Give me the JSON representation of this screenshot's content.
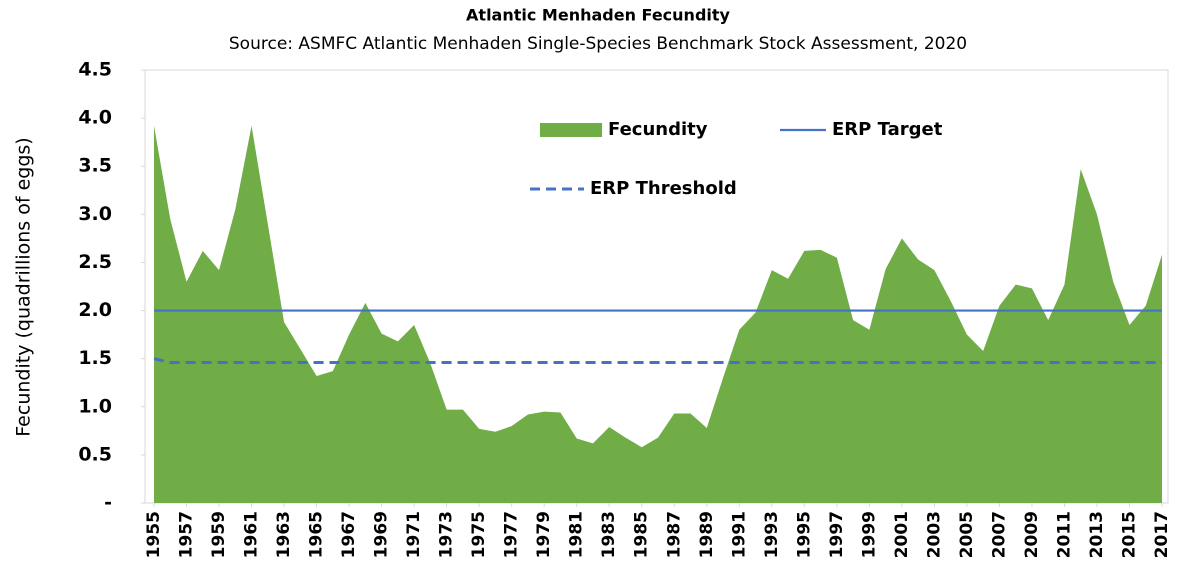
{
  "chart_data": {
    "type": "area",
    "title": "Atlantic Menhaden Fecundity",
    "subtitle": "Source: ASMFC Atlantic Menhaden Single-Species Benchmark Stock Assessment, 2020",
    "y_label": "Fecundity (quadrillions of eggs)",
    "x": [
      1955,
      1956,
      1957,
      1958,
      1959,
      1960,
      1961,
      1962,
      1963,
      1964,
      1965,
      1966,
      1967,
      1968,
      1969,
      1970,
      1971,
      1972,
      1973,
      1974,
      1975,
      1976,
      1977,
      1978,
      1979,
      1980,
      1981,
      1982,
      1983,
      1984,
      1985,
      1986,
      1987,
      1988,
      1989,
      1990,
      1991,
      1992,
      1993,
      1994,
      1995,
      1996,
      1997,
      1998,
      1999,
      2000,
      2001,
      2002,
      2003,
      2004,
      2005,
      2006,
      2007,
      2008,
      2009,
      2010,
      2011,
      2012,
      2013,
      2014,
      2015,
      2016,
      2017
    ],
    "xlim": [
      1955,
      2017
    ],
    "xticks": [
      1955,
      1957,
      1959,
      1961,
      1963,
      1965,
      1967,
      1969,
      1971,
      1973,
      1975,
      1977,
      1979,
      1981,
      1983,
      1985,
      1987,
      1989,
      1991,
      1993,
      1995,
      1997,
      1999,
      2001,
      2003,
      2005,
      2007,
      2009,
      2011,
      2013,
      2015,
      2017
    ],
    "ylim": [
      0,
      4.5
    ],
    "yticks": [
      {
        "value": 0,
        "label": "-"
      },
      0.5,
      {
        "value": 1,
        "label": "1.0"
      },
      1.5,
      {
        "value": 2,
        "label": "2.0"
      },
      2.5,
      {
        "value": 3,
        "label": "3.0"
      },
      3.5,
      {
        "value": 4,
        "label": "4.0"
      },
      4.5
    ],
    "series": [
      {
        "name": "Fecundity",
        "color": "#70ad47",
        "style": "area",
        "values": [
          3.92,
          2.95,
          2.3,
          2.62,
          2.42,
          3.05,
          3.92,
          2.9,
          1.88,
          1.6,
          1.32,
          1.37,
          1.75,
          2.08,
          1.76,
          1.68,
          1.85,
          1.45,
          0.97,
          0.97,
          0.77,
          0.74,
          0.8,
          0.92,
          0.95,
          0.94,
          0.67,
          0.62,
          0.79,
          0.68,
          0.58,
          0.68,
          0.93,
          0.93,
          0.78,
          1.3,
          1.8,
          1.98,
          2.42,
          2.33,
          2.62,
          2.63,
          2.55,
          1.9,
          1.8,
          2.43,
          2.75,
          2.53,
          2.42,
          2.1,
          1.75,
          1.58,
          2.05,
          2.27,
          2.23,
          1.9,
          2.27,
          3.47,
          3.0,
          2.3,
          1.85,
          2.05,
          2.58
        ]
      },
      {
        "name": "ERP Target",
        "color": "#4472c4",
        "style": "solid",
        "values": [
          2,
          2,
          2,
          2,
          2,
          2,
          2,
          2,
          2,
          2,
          2,
          2,
          2,
          2,
          2,
          2,
          2,
          2,
          2,
          2,
          2,
          2,
          2,
          2,
          2,
          2,
          2,
          2,
          2,
          2,
          2,
          2,
          2,
          2,
          2,
          2,
          2,
          2,
          2,
          2,
          2,
          2,
          2,
          2,
          2,
          2,
          2,
          2,
          2,
          2,
          2,
          2,
          2,
          2,
          2,
          2,
          2,
          2,
          2,
          2,
          2,
          2,
          2
        ]
      },
      {
        "name": "ERP Threshold",
        "color": "#4472c4",
        "style": "dashed",
        "values": [
          1.5,
          1.46,
          1.46,
          1.46,
          1.46,
          1.46,
          1.46,
          1.46,
          1.46,
          1.46,
          1.46,
          1.46,
          1.46,
          1.46,
          1.46,
          1.46,
          1.46,
          1.46,
          1.46,
          1.46,
          1.46,
          1.46,
          1.46,
          1.46,
          1.46,
          1.46,
          1.46,
          1.46,
          1.46,
          1.46,
          1.46,
          1.46,
          1.46,
          1.46,
          1.46,
          1.46,
          1.46,
          1.46,
          1.46,
          1.46,
          1.46,
          1.46,
          1.46,
          1.46,
          1.46,
          1.46,
          1.46,
          1.46,
          1.46,
          1.46,
          1.46,
          1.46,
          1.46,
          1.46,
          1.46,
          1.46,
          1.46,
          1.46,
          1.46,
          1.46,
          1.46,
          1.46,
          1.46
        ]
      }
    ]
  }
}
